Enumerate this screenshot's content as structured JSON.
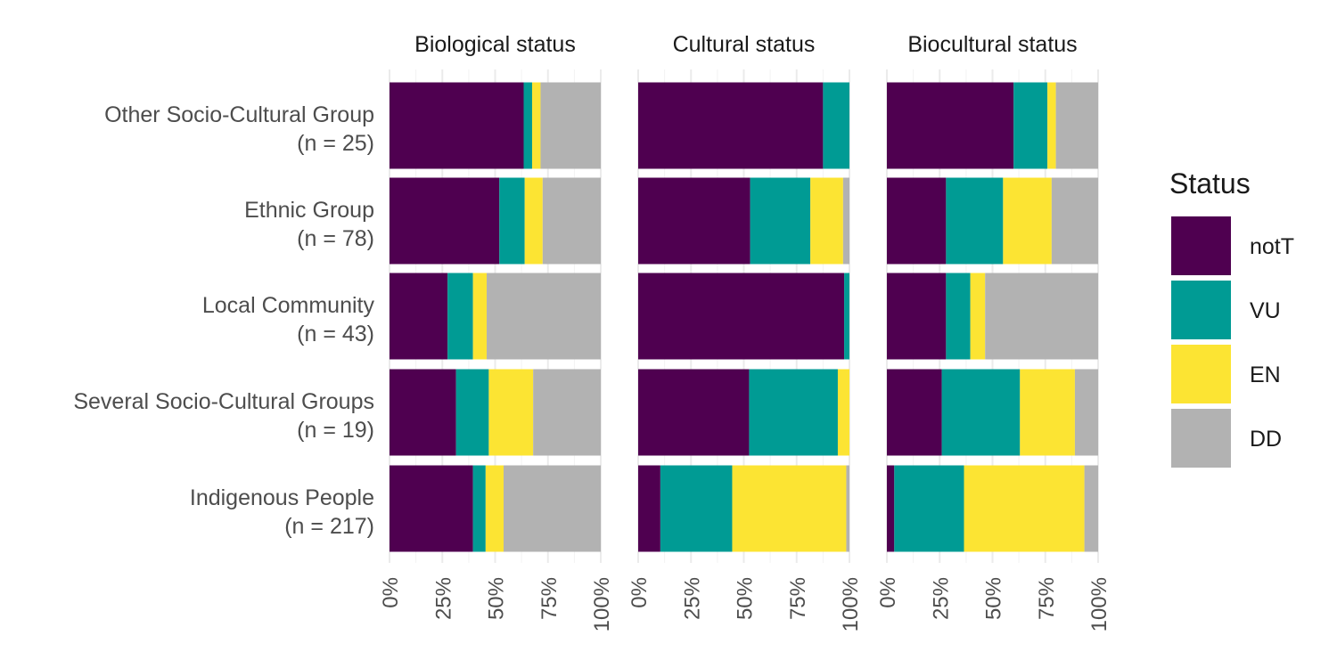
{
  "chart_data": {
    "type": "bar",
    "orientation": "horizontal",
    "stacked": "percent",
    "panels": [
      "Biological status",
      "Cultural status",
      "Biocultural status"
    ],
    "categories": [
      {
        "name": "Other Socio-Cultural Group",
        "n": "(n = 25)"
      },
      {
        "name": "Ethnic Group",
        "n": "(n = 78)"
      },
      {
        "name": "Local Community",
        "n": "(n = 43)"
      },
      {
        "name": "Several Socio-Cultural Groups",
        "n": "(n = 19)"
      },
      {
        "name": "Indigenous People",
        "n": "(n = 217)"
      }
    ],
    "x_ticks": [
      "0%",
      "25%",
      "50%",
      "75%",
      "100%"
    ],
    "xlim": [
      0,
      100
    ],
    "legend": {
      "title": "Status",
      "position": "right",
      "items": [
        {
          "label": "notT",
          "color": "#440154"
        },
        {
          "label": "VU",
          "color": "#21908C"
        },
        {
          "label": "EN",
          "color": "#FDE725"
        },
        {
          "label": "DD",
          "color": "#B3B3B3"
        }
      ]
    },
    "colors": {
      "notT": "#4F0050",
      "VU": "#009B94",
      "EN": "#FCE433",
      "DD": "#B2B2B2"
    },
    "values": [
      [
        {
          "notT": 63.5,
          "VU": 4.0,
          "EN": 4.0,
          "DD": 28.5
        },
        {
          "notT": 52.0,
          "VU": 12.0,
          "EN": 8.5,
          "DD": 27.5
        },
        {
          "notT": 27.5,
          "VU": 12.0,
          "EN": 6.5,
          "DD": 54.0
        },
        {
          "notT": 31.5,
          "VU": 15.5,
          "EN": 21.0,
          "DD": 32.0
        },
        {
          "notT": 39.5,
          "VU": 6.0,
          "EN": 8.5,
          "DD": 46.0
        }
      ],
      [
        {
          "notT": 87.5,
          "VU": 12.5,
          "EN": 0,
          "DD": 0
        },
        {
          "notT": 53.0,
          "VU": 28.5,
          "EN": 15.5,
          "DD": 3.0
        },
        {
          "notT": 97.5,
          "VU": 2.5,
          "EN": 0,
          "DD": 0
        },
        {
          "notT": 52.5,
          "VU": 42.0,
          "EN": 5.5,
          "DD": 0
        },
        {
          "notT": 10.5,
          "VU": 34.0,
          "EN": 54.0,
          "DD": 1.5
        }
      ],
      [
        {
          "notT": 60.0,
          "VU": 16.0,
          "EN": 4.0,
          "DD": 20.0
        },
        {
          "notT": 28.0,
          "VU": 27.0,
          "EN": 23.0,
          "DD": 22.0
        },
        {
          "notT": 28.0,
          "VU": 11.5,
          "EN": 7.0,
          "DD": 53.5
        },
        {
          "notT": 26.0,
          "VU": 37.0,
          "EN": 26.0,
          "DD": 11.0
        },
        {
          "notT": 3.5,
          "VU": 33.0,
          "EN": 57.0,
          "DD": 6.5
        }
      ]
    ]
  }
}
